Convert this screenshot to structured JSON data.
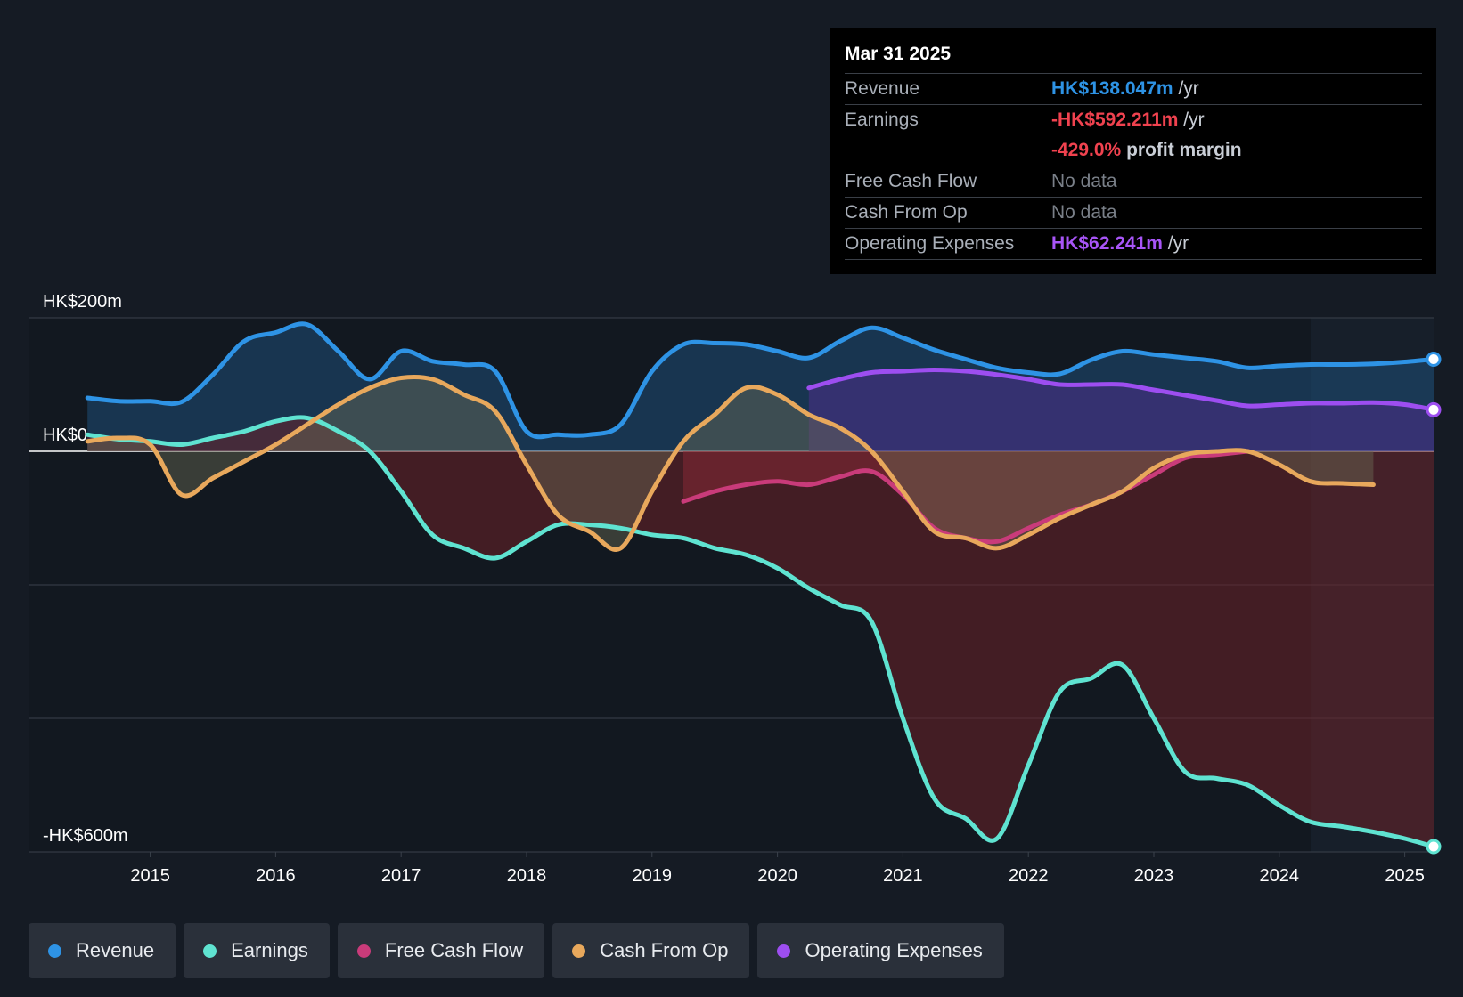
{
  "tooltip": {
    "date": "Mar 31 2025",
    "rows": {
      "revenue": {
        "label": "Revenue",
        "value": "HK$138.047m",
        "unit": "/yr"
      },
      "earnings": {
        "label": "Earnings",
        "value": "-HK$592.211m",
        "unit": "/yr",
        "margin_value": "-429.0%",
        "margin_label": "profit margin"
      },
      "fcf": {
        "label": "Free Cash Flow",
        "value": "No data"
      },
      "cfo": {
        "label": "Cash From Op",
        "value": "No data"
      },
      "opex": {
        "label": "Operating Expenses",
        "value": "HK$62.241m",
        "unit": "/yr"
      }
    }
  },
  "legend": {
    "revenue": "Revenue",
    "earnings": "Earnings",
    "fcf": "Free Cash Flow",
    "cfo": "Cash From Op",
    "opex": "Operating Expenses"
  },
  "colors": {
    "revenue": "#2e93e5",
    "earnings": "#5fe3d1",
    "fcf": "#c93b7a",
    "cfo": "#e8a85c",
    "opex": "#9d4ef0",
    "background": "#151b24"
  },
  "chart_data": {
    "type": "line",
    "title": "",
    "ylabel": "",
    "xlabel": "",
    "currency": "HK$",
    "y_ticks": [
      {
        "value": 200,
        "label": "HK$200m"
      },
      {
        "value": 0,
        "label": "HK$0"
      },
      {
        "value": -600,
        "label": "-HK$600m"
      }
    ],
    "ylim": [
      -600,
      200
    ],
    "xlim": [
      2014.03,
      2025.23
    ],
    "x_ticks": [
      2015,
      2016,
      2017,
      2018,
      2019,
      2020,
      2021,
      2022,
      2023,
      2024,
      2025
    ],
    "forecast_start": 2024.25,
    "series": [
      {
        "key": "revenue",
        "name": "Revenue",
        "unit": "HK$m",
        "x": [
          2014.5,
          2014.75,
          2015.0,
          2015.25,
          2015.5,
          2015.75,
          2016.0,
          2016.25,
          2016.5,
          2016.75,
          2017.0,
          2017.25,
          2017.5,
          2017.75,
          2018.0,
          2018.25,
          2018.5,
          2018.75,
          2019.0,
          2019.25,
          2019.5,
          2019.75,
          2020.0,
          2020.25,
          2020.5,
          2020.75,
          2021.0,
          2021.25,
          2021.5,
          2021.75,
          2022.0,
          2022.25,
          2022.5,
          2022.75,
          2023.0,
          2023.25,
          2023.5,
          2023.75,
          2024.0,
          2024.25,
          2024.5,
          2024.75,
          2025.0,
          2025.23
        ],
        "y": [
          80,
          75,
          75,
          74,
          115,
          165,
          178,
          190,
          150,
          108,
          150,
          135,
          130,
          120,
          30,
          25,
          25,
          40,
          120,
          160,
          162,
          160,
          150,
          140,
          165,
          185,
          170,
          152,
          138,
          125,
          118,
          116,
          137,
          150,
          145,
          140,
          135,
          125,
          128,
          130,
          130,
          131,
          134,
          138
        ]
      },
      {
        "key": "earnings",
        "name": "Earnings",
        "unit": "HK$m",
        "x": [
          2014.5,
          2014.75,
          2015.0,
          2015.25,
          2015.5,
          2015.75,
          2016.0,
          2016.25,
          2016.5,
          2016.75,
          2017.0,
          2017.25,
          2017.5,
          2017.75,
          2018.0,
          2018.25,
          2018.5,
          2018.75,
          2019.0,
          2019.25,
          2019.5,
          2019.75,
          2020.0,
          2020.25,
          2020.5,
          2020.75,
          2021.0,
          2021.25,
          2021.5,
          2021.75,
          2022.0,
          2022.25,
          2022.5,
          2022.75,
          2023.0,
          2023.25,
          2023.5,
          2023.75,
          2024.0,
          2024.25,
          2024.5,
          2024.75,
          2025.0,
          2025.23
        ],
        "y": [
          25,
          18,
          15,
          10,
          20,
          30,
          45,
          50,
          30,
          0,
          -60,
          -125,
          -145,
          -160,
          -135,
          -110,
          -110,
          -115,
          -125,
          -130,
          -145,
          -155,
          -175,
          -205,
          -230,
          -255,
          -400,
          -520,
          -550,
          -580,
          -470,
          -360,
          -340,
          -320,
          -400,
          -480,
          -490,
          -500,
          -530,
          -555,
          -562,
          -570,
          -580,
          -592
        ]
      },
      {
        "key": "fcf",
        "name": "Free Cash Flow",
        "unit": "HK$m",
        "x": [
          2019.25,
          2019.5,
          2019.75,
          2020.0,
          2020.25,
          2020.5,
          2020.75,
          2021.0,
          2021.25,
          2021.5,
          2021.75,
          2022.0,
          2022.25,
          2022.5,
          2022.75,
          2023.0,
          2023.25,
          2023.5,
          2023.75
        ],
        "y": [
          -75,
          -60,
          -50,
          -45,
          -50,
          -38,
          -30,
          -65,
          -115,
          -130,
          -135,
          -115,
          -95,
          -80,
          -60,
          -35,
          -10,
          -5,
          0
        ]
      },
      {
        "key": "cfo",
        "name": "Cash From Op",
        "unit": "HK$m",
        "x": [
          2014.5,
          2014.75,
          2015.0,
          2015.25,
          2015.5,
          2015.75,
          2016.0,
          2016.25,
          2016.5,
          2016.75,
          2017.0,
          2017.25,
          2017.5,
          2017.75,
          2018.0,
          2018.25,
          2018.5,
          2018.75,
          2019.0,
          2019.25,
          2019.5,
          2019.75,
          2020.0,
          2020.25,
          2020.5,
          2020.75,
          2021.0,
          2021.25,
          2021.5,
          2021.75,
          2022.0,
          2022.25,
          2022.5,
          2022.75,
          2023.0,
          2023.25,
          2023.5,
          2023.75,
          2024.0,
          2024.25,
          2024.5,
          2024.75
        ],
        "y": [
          15,
          20,
          10,
          -65,
          -40,
          -15,
          10,
          40,
          70,
          95,
          110,
          108,
          85,
          60,
          -20,
          -95,
          -120,
          -145,
          -60,
          15,
          55,
          95,
          85,
          55,
          35,
          0,
          -60,
          -120,
          -130,
          -145,
          -125,
          -100,
          -80,
          -60,
          -25,
          -5,
          0,
          0,
          -20,
          -45,
          -48,
          -50
        ]
      },
      {
        "key": "opex",
        "name": "Operating Expenses",
        "unit": "HK$m",
        "x": [
          2020.25,
          2020.5,
          2020.75,
          2021.0,
          2021.25,
          2021.5,
          2021.75,
          2022.0,
          2022.25,
          2022.5,
          2022.75,
          2023.0,
          2023.25,
          2023.5,
          2023.75,
          2024.0,
          2024.25,
          2024.5,
          2024.75,
          2025.0,
          2025.23
        ],
        "y": [
          95,
          108,
          118,
          120,
          122,
          120,
          115,
          108,
          100,
          100,
          100,
          92,
          84,
          76,
          68,
          70,
          72,
          72,
          73,
          70,
          62.241
        ]
      }
    ]
  }
}
